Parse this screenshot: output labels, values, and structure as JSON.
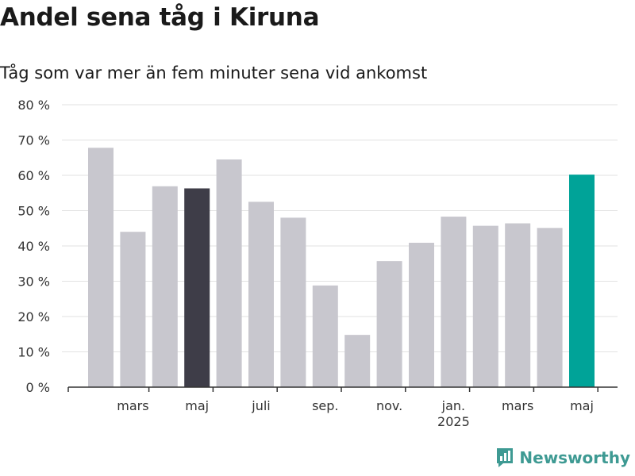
{
  "title": "Andel sena tåg i Kiruna",
  "subtitle": "Tåg som var mer än fem minuter sena vid ankomst",
  "brand": {
    "name": "Newsworthy"
  },
  "colors": {
    "default_bar": "#c8c7ce",
    "highlight_bar": "#3e3d48",
    "latest_bar": "#00a398",
    "grid": "#e2e2e2",
    "axis": "#333333"
  },
  "chart_data": {
    "type": "bar",
    "categories": [
      "2024-02",
      "2024-03",
      "2024-04",
      "2024-05",
      "2024-06",
      "2024-07",
      "2024-08",
      "2024-09",
      "2024-10",
      "2024-11",
      "2024-12",
      "2025-01",
      "2025-02",
      "2025-03",
      "2025-04",
      "2025-05"
    ],
    "values": [
      67.8,
      44.0,
      56.9,
      56.3,
      64.5,
      52.5,
      48.0,
      28.8,
      14.8,
      35.7,
      40.9,
      48.3,
      45.7,
      46.4,
      45.1,
      60.2
    ],
    "highlight": {
      "2024-05": "highlight_bar",
      "2025-05": "latest_bar"
    },
    "ylim": [
      0,
      80
    ],
    "yticks": [
      {
        "value": 0,
        "label": "0 %"
      },
      {
        "value": 10,
        "label": "10 %"
      },
      {
        "value": 20,
        "label": "20 %"
      },
      {
        "value": 30,
        "label": "30 %"
      },
      {
        "value": 40,
        "label": "40 %"
      },
      {
        "value": 50,
        "label": "50 %"
      },
      {
        "value": 60,
        "label": "60 %"
      },
      {
        "value": 70,
        "label": "70 %"
      },
      {
        "value": 80,
        "label": "80 %"
      }
    ],
    "xticks": [
      {
        "category": "2024-03",
        "label": "mars",
        "sublabel": ""
      },
      {
        "category": "2024-05",
        "label": "maj",
        "sublabel": ""
      },
      {
        "category": "2024-07",
        "label": "juli",
        "sublabel": ""
      },
      {
        "category": "2024-09",
        "label": "sep.",
        "sublabel": ""
      },
      {
        "category": "2024-11",
        "label": "nov.",
        "sublabel": ""
      },
      {
        "category": "2025-01",
        "label": "jan.",
        "sublabel": "2025"
      },
      {
        "category": "2025-03",
        "label": "mars",
        "sublabel": ""
      },
      {
        "category": "2025-05",
        "label": "maj",
        "sublabel": ""
      }
    ],
    "grid": true,
    "legend": "none"
  }
}
